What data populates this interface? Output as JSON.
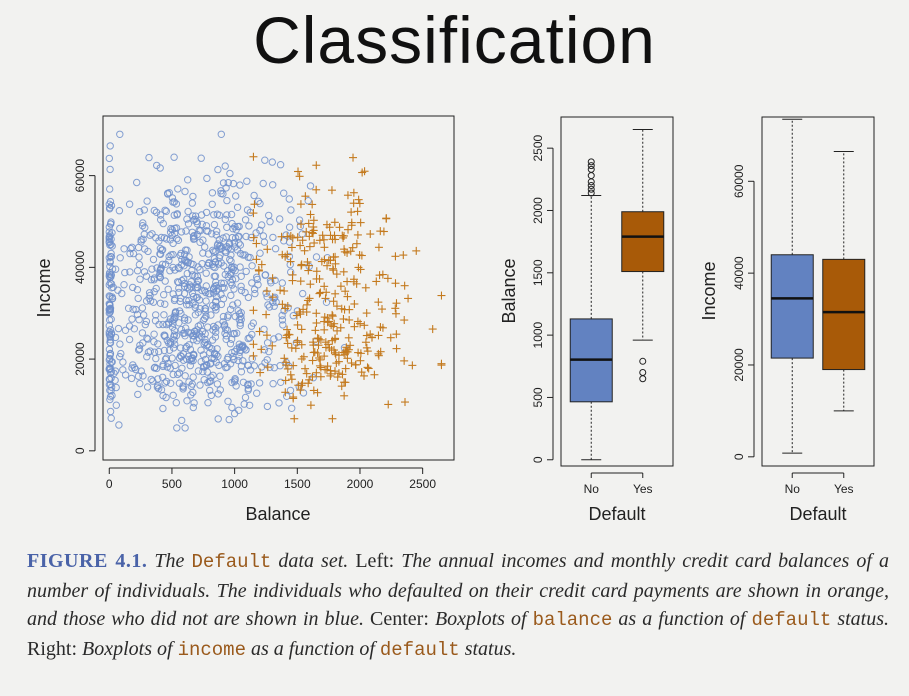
{
  "slide": {
    "title": "Classification"
  },
  "colors": {
    "no": "#6f8fcb",
    "yes": "#c47a1e",
    "box_no": "#6282c1",
    "box_yes": "#a85a08"
  },
  "chart_data": [
    {
      "type": "scatter",
      "xlabel": "Balance",
      "ylabel": "Income",
      "xlim": [
        -50,
        2750
      ],
      "ylim": [
        -2000,
        73000
      ],
      "xticks": [
        "0",
        "500",
        "1000",
        "1500",
        "2000",
        "2500"
      ],
      "yticks": [
        "0",
        "20000",
        "40000",
        "60000"
      ],
      "series": [
        {
          "marker": "circle",
          "color": "#6f8fcb",
          "balance_range": [
            0,
            1950
          ],
          "income_range": [
            5000,
            69000
          ]
        },
        {
          "marker": "plus",
          "color": "#c47a1e",
          "balance_range": [
            1100,
            2650
          ],
          "income_range": [
            7000,
            67000
          ]
        }
      ]
    },
    {
      "type": "box",
      "xlabel": "Default",
      "ylabel": "Balance",
      "categories": [
        "No",
        "Yes"
      ],
      "ylim": [
        -50,
        2750
      ],
      "yticks": [
        "0",
        "500",
        "1000",
        "1500",
        "2000",
        "2500"
      ],
      "boxes": [
        {
          "category": "No",
          "whisker_low": 0,
          "q1": 465,
          "median": 803,
          "q3": 1130,
          "whisker_high": 2120,
          "outliers": [
            2140,
            2170,
            2200,
            2230,
            2280,
            2330,
            2360,
            2390
          ]
        },
        {
          "category": "Yes",
          "whisker_low": 960,
          "q1": 1510,
          "median": 1790,
          "q3": 1990,
          "whisker_high": 2650,
          "outliers": [
            650,
            700,
            790
          ]
        }
      ]
    },
    {
      "type": "box",
      "xlabel": "Default",
      "ylabel": "Income",
      "categories": [
        "No",
        "Yes"
      ],
      "ylim": [
        -2000,
        74000
      ],
      "yticks": [
        "0",
        "20000",
        "40000",
        "60000"
      ],
      "boxes": [
        {
          "category": "No",
          "whisker_low": 800,
          "q1": 21500,
          "median": 34500,
          "q3": 44000,
          "whisker_high": 73500,
          "outliers": []
        },
        {
          "category": "Yes",
          "whisker_low": 10000,
          "q1": 19000,
          "median": 31500,
          "q3": 43000,
          "whisker_high": 66500,
          "outliers": []
        }
      ]
    }
  ],
  "caption": {
    "fig_label": "FIGURE 4.1.",
    "p1": " The ",
    "c1": "Default",
    "p2": " data set. ",
    "p3": "Left:",
    "p4": " The annual incomes and monthly credit card balances of a number of individuals. The individuals who defaulted on their credit card payments are shown in orange, and those who did not are shown in blue. ",
    "p5": "Center:",
    "p6": " Boxplots of ",
    "c2": "balance",
    "p7": " as a function of ",
    "c3": "default",
    "p8": " status. ",
    "p9": "Right:",
    "p10": " Boxplots of ",
    "c4": "income",
    "p11": " as a function of ",
    "c5": "default",
    "p12": " status."
  }
}
